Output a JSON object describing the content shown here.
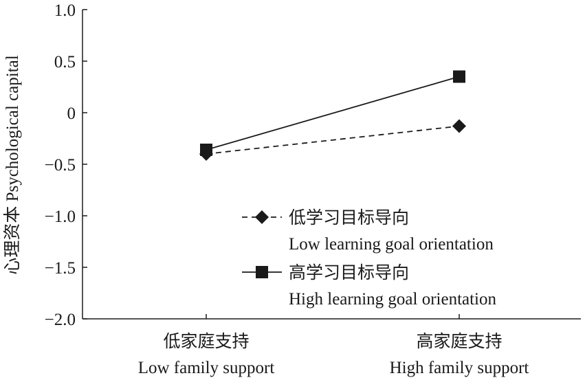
{
  "chart_data": {
    "type": "line",
    "title": "",
    "xlabel": "",
    "ylabel": "心理资本 Psychological capital",
    "ylim": [
      -2.0,
      1.0
    ],
    "yticks": [
      1.0,
      0.5,
      0,
      -0.5,
      -1.0,
      -1.5,
      -2.0
    ],
    "ytick_labels": [
      "1.0",
      "0.5",
      "0",
      "−0.5",
      "−1.0",
      "−1.5",
      "−2.0"
    ],
    "categories": [
      {
        "zh": "低家庭支持",
        "en": "Low family support"
      },
      {
        "zh": "高家庭支持",
        "en": "High family support"
      }
    ],
    "series": [
      {
        "name_zh": "低学习目标导向",
        "name_en": "Low learning goal orientation",
        "marker": "diamond",
        "line": "dashed",
        "values": [
          -0.4,
          -0.13
        ]
      },
      {
        "name_zh": "高学习目标导向",
        "name_en": "High learning goal orientation",
        "marker": "square",
        "line": "solid",
        "values": [
          -0.36,
          0.35
        ]
      }
    ],
    "grid": false,
    "legend_placement": "bottom-right",
    "color": "#1a1a1a"
  }
}
